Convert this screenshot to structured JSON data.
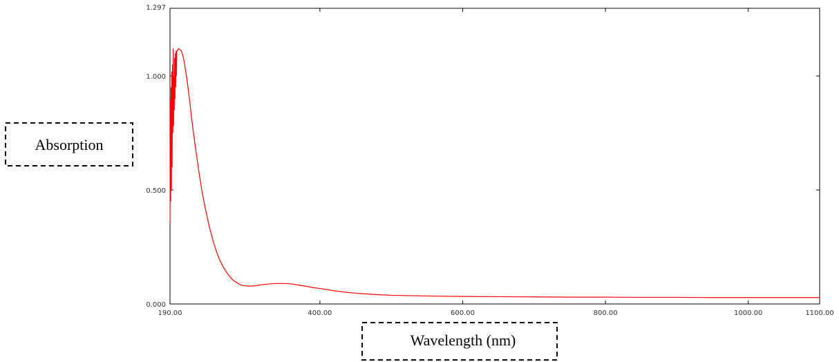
{
  "chart_data": {
    "type": "line",
    "title": "",
    "xlabel": "Wavelength (nm)",
    "ylabel": "Absorption",
    "xlim": [
      190,
      1100
    ],
    "ylim": [
      0,
      1.297
    ],
    "x_ticks": [
      {
        "value": 190,
        "label": "190.00"
      },
      {
        "value": 400,
        "label": "400.00"
      },
      {
        "value": 600,
        "label": "600.00"
      },
      {
        "value": 800,
        "label": "800.00"
      },
      {
        "value": 1000,
        "label": "1000.00"
      },
      {
        "value": 1100,
        "label": "1100.00"
      }
    ],
    "y_ticks": [
      {
        "value": 0,
        "label": "0.000"
      },
      {
        "value": 0.5,
        "label": "0.500"
      },
      {
        "value": 1.0,
        "label": "1.000"
      },
      {
        "value": 1.297,
        "label": "1.297"
      }
    ],
    "grid": false,
    "series": [
      {
        "color": "#ff0000",
        "x": [
          190,
          190.5,
          191,
          191.5,
          192,
          192.5,
          193,
          193.5,
          194,
          194.5,
          195,
          195.5,
          196,
          196.5,
          197,
          197.5,
          198,
          198.5,
          199,
          199.5,
          200,
          202,
          204,
          206,
          208,
          210,
          212,
          214,
          216,
          218,
          220,
          225,
          230,
          235,
          240,
          245,
          250,
          255,
          260,
          265,
          270,
          275,
          280,
          290,
          300,
          310,
          320,
          330,
          340,
          350,
          360,
          370,
          380,
          390,
          400,
          420,
          440,
          460,
          480,
          500,
          550,
          600,
          650,
          700,
          750,
          800,
          850,
          900,
          950,
          1000,
          1050,
          1100
        ],
        "y": [
          0.35,
          0.9,
          0.45,
          0.95,
          0.5,
          1.02,
          0.6,
          1.05,
          0.75,
          1.12,
          0.78,
          1.0,
          0.85,
          1.08,
          0.9,
          1.1,
          0.95,
          1.11,
          1.0,
          1.11,
          1.11,
          1.12,
          1.115,
          1.11,
          1.09,
          1.06,
          1.02,
          0.98,
          0.93,
          0.88,
          0.82,
          0.7,
          0.59,
          0.49,
          0.41,
          0.34,
          0.28,
          0.23,
          0.19,
          0.16,
          0.135,
          0.115,
          0.1,
          0.082,
          0.078,
          0.08,
          0.085,
          0.088,
          0.09,
          0.09,
          0.088,
          0.083,
          0.078,
          0.072,
          0.068,
          0.058,
          0.05,
          0.045,
          0.041,
          0.038,
          0.035,
          0.033,
          0.032,
          0.031,
          0.03,
          0.03,
          0.029,
          0.029,
          0.028,
          0.028,
          0.028,
          0.028
        ]
      }
    ]
  }
}
